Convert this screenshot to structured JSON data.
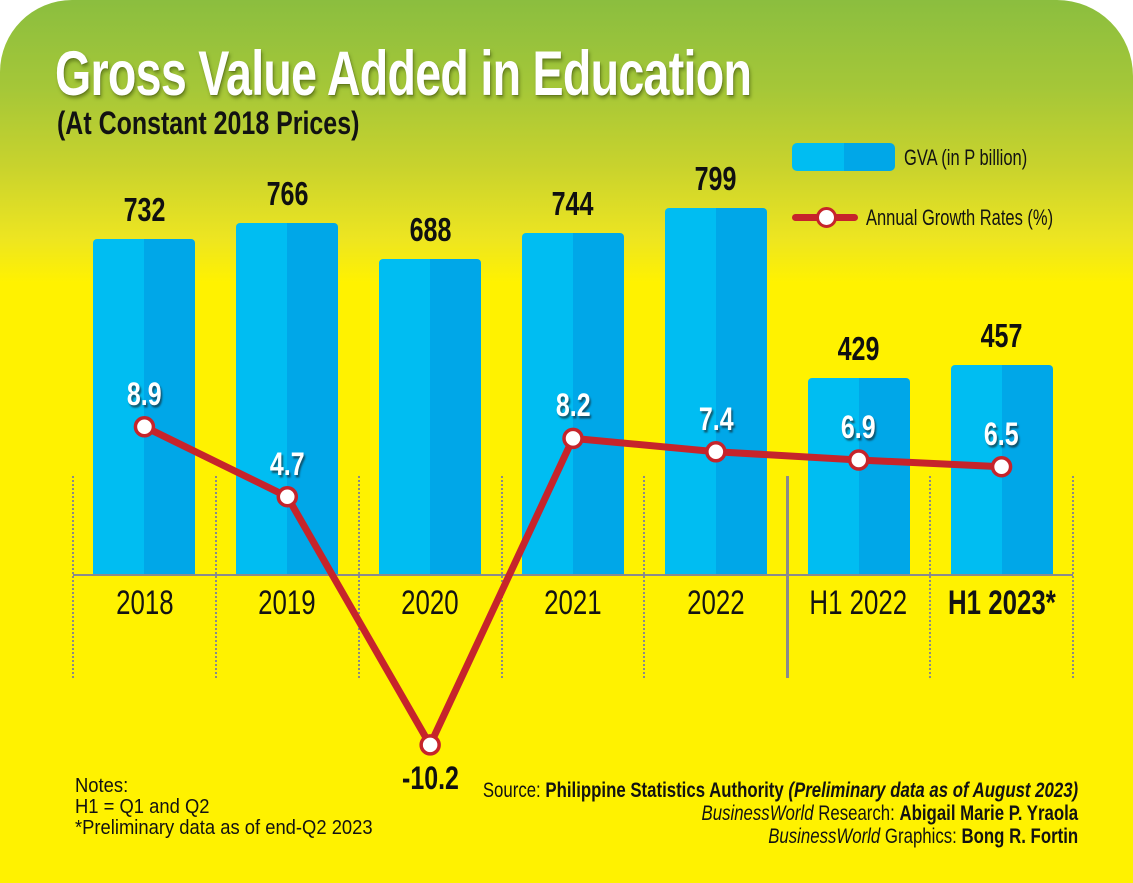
{
  "title": "Gross Value Added in Education",
  "subtitle": "(At Constant 2018 Prices)",
  "legend": {
    "bar_label": "GVA (in P billion)",
    "line_label": "Annual Growth Rates (%)"
  },
  "colors": {
    "bar_light": "#00BDF2",
    "bar_dark": "#00A7E8",
    "line_red": "#C6242B",
    "background_yellow": "#FFF200",
    "header_green": "#8BBE3F",
    "axis_gray": "#8B8B8B"
  },
  "chart_data": {
    "type": "combo",
    "categories": [
      "2018",
      "2019",
      "2020",
      "2021",
      "2022",
      "H1 2022",
      "H1 2023*"
    ],
    "series": [
      {
        "name": "GVA (in P billion)",
        "type": "bar",
        "values": [
          732,
          766,
          688,
          744,
          799,
          429,
          457
        ]
      },
      {
        "name": "Annual Growth Rates (%)",
        "type": "line",
        "values": [
          8.9,
          4.7,
          -10.2,
          8.2,
          7.4,
          6.9,
          6.5
        ]
      }
    ],
    "bold_categories": [
      "H1 2023*"
    ],
    "separator_after_category": "2022",
    "legend_position": "top-right",
    "grid": "category-boundary-dotted"
  },
  "notes": {
    "lines": [
      "Notes:",
      "H1 = Q1 and Q2",
      "*Preliminary data as of end-Q2 2023"
    ]
  },
  "source": {
    "lines": [
      {
        "segments": [
          {
            "text": "Source: ",
            "style": "regular"
          },
          {
            "text": "Philippine Statistics Authority ",
            "style": "bold"
          },
          {
            "text": "(Preliminary data as of August 2023)",
            "style": "bold-italic"
          }
        ]
      },
      {
        "segments": [
          {
            "text": "BusinessWorld",
            "style": "italic"
          },
          {
            "text": " Research: ",
            "style": "regular"
          },
          {
            "text": "Abigail Marie P. Yraola",
            "style": "bold"
          }
        ]
      },
      {
        "segments": [
          {
            "text": "BusinessWorld",
            "style": "italic"
          },
          {
            "text": " Graphics: ",
            "style": "regular"
          },
          {
            "text": "Bong R. Fortin",
            "style": "bold"
          }
        ]
      }
    ]
  }
}
